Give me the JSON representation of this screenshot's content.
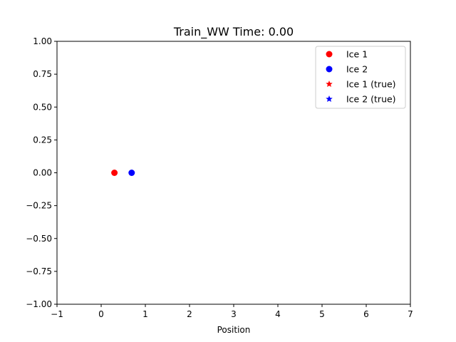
{
  "chart_data": {
    "type": "scatter",
    "title": "Train_WW Time: 0.00",
    "xlabel": "Position",
    "ylabel": "",
    "xlim": [
      -1,
      7
    ],
    "ylim": [
      -1.0,
      1.0
    ],
    "x_ticks": [
      -1,
      0,
      1,
      2,
      3,
      4,
      5,
      6,
      7
    ],
    "x_tick_labels": [
      "−1",
      "0",
      "1",
      "2",
      "3",
      "4",
      "5",
      "6",
      "7"
    ],
    "y_ticks": [
      -1.0,
      -0.75,
      -0.5,
      -0.25,
      0.0,
      0.25,
      0.5,
      0.75,
      1.0
    ],
    "y_tick_labels": [
      "−1.00",
      "−0.75",
      "−0.50",
      "−0.25",
      "0.00",
      "0.25",
      "0.50",
      "0.75",
      "1.00"
    ],
    "grid": false,
    "legend_position": "top-right",
    "series": [
      {
        "name": "Ice 1",
        "marker": "circle",
        "color": "#ff0000",
        "points": [
          [
            0.3,
            0.0
          ]
        ]
      },
      {
        "name": "Ice 2",
        "marker": "circle",
        "color": "#0000ff",
        "points": [
          [
            0.69,
            0.0
          ]
        ]
      },
      {
        "name": "Ice 1 (true)",
        "marker": "star",
        "color": "#ff0000",
        "points": []
      },
      {
        "name": "Ice 2 (true)",
        "marker": "star",
        "color": "#0000ff",
        "points": []
      }
    ]
  }
}
